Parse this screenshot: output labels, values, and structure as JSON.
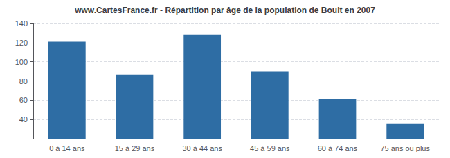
{
  "chart_data": {
    "type": "bar",
    "title": "www.CartesFrance.fr - Répartition par âge de la population de Boult en 2007",
    "categories": [
      "0 à 14 ans",
      "15 à 29 ans",
      "30 à 44 ans",
      "45 à 59 ans",
      "60 à 74 ans",
      "75 ans ou plus"
    ],
    "values": [
      121,
      87,
      128,
      90,
      61,
      36
    ],
    "color": "#2e6da4",
    "ylim": [
      20,
      140
    ],
    "yticks": [
      40,
      60,
      80,
      100,
      120,
      140
    ],
    "grid": true
  }
}
